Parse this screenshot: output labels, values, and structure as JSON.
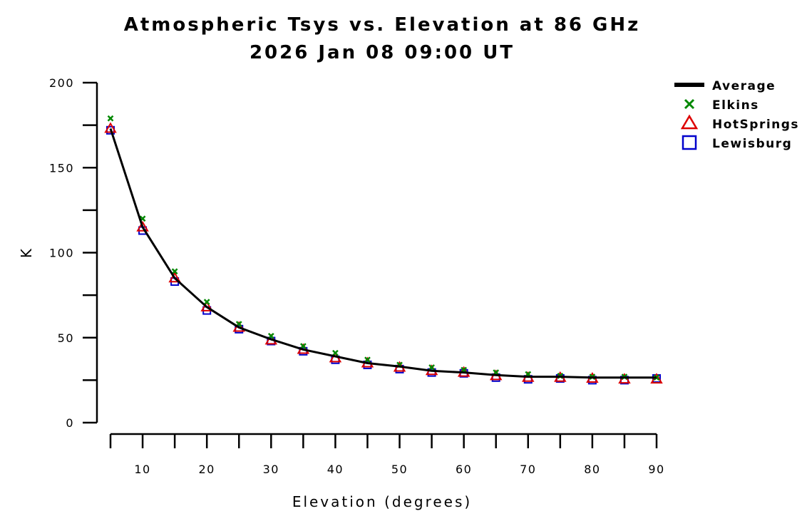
{
  "chart_data": {
    "type": "line",
    "title": "Atmospheric Tsys vs. Elevation at 86 GHz",
    "subtitle": "2026 Jan 08 09:00 UT",
    "xlabel": "Elevation (degrees)",
    "ylabel": "K",
    "xlim": [
      5,
      90
    ],
    "ylim": [
      0,
      200
    ],
    "x_ticks": [
      10,
      20,
      30,
      40,
      50,
      60,
      70,
      80,
      90
    ],
    "x_minor_ticks": [
      5,
      10,
      15,
      20,
      25,
      30,
      35,
      40,
      45,
      50,
      55,
      60,
      65,
      70,
      75,
      80,
      85,
      90
    ],
    "y_ticks": [
      0,
      50,
      100,
      150,
      200
    ],
    "y_minor_ticks": [
      0,
      25,
      50,
      75,
      100,
      125,
      150,
      175,
      200
    ],
    "grid": false,
    "legend_position": "top-right",
    "x": [
      5,
      10,
      15,
      20,
      25,
      30,
      35,
      40,
      45,
      50,
      55,
      60,
      65,
      70,
      75,
      80,
      85,
      90
    ],
    "series": [
      {
        "name": "Average",
        "style": "line",
        "color": "#000000",
        "values": [
          173,
          115,
          85,
          68,
          56,
          49,
          43,
          39,
          35,
          33,
          30.5,
          29.5,
          28,
          27,
          27,
          26.5,
          26.5,
          26.5
        ]
      },
      {
        "name": "Elkins",
        "style": "x-marker",
        "color": "#008800",
        "values": [
          179,
          120,
          89,
          71,
          58,
          51,
          45,
          41,
          37,
          34,
          32.5,
          31,
          29.5,
          28.5,
          27.5,
          27,
          27,
          26.5
        ]
      },
      {
        "name": "HotSprings",
        "style": "triangle-marker",
        "color": "#dd0000",
        "values": [
          173,
          115,
          85,
          68,
          56,
          48.5,
          43,
          38,
          35,
          32.5,
          30.5,
          29.5,
          27.5,
          26.5,
          26.5,
          26,
          25.5,
          25.5
        ]
      },
      {
        "name": "Lewisburg",
        "style": "square-marker",
        "color": "#0000cc",
        "values": [
          172,
          113,
          83,
          66,
          55,
          48,
          42,
          37,
          34,
          31.5,
          29.5,
          29,
          26.5,
          25.5,
          26,
          25,
          25,
          26
        ]
      }
    ]
  }
}
